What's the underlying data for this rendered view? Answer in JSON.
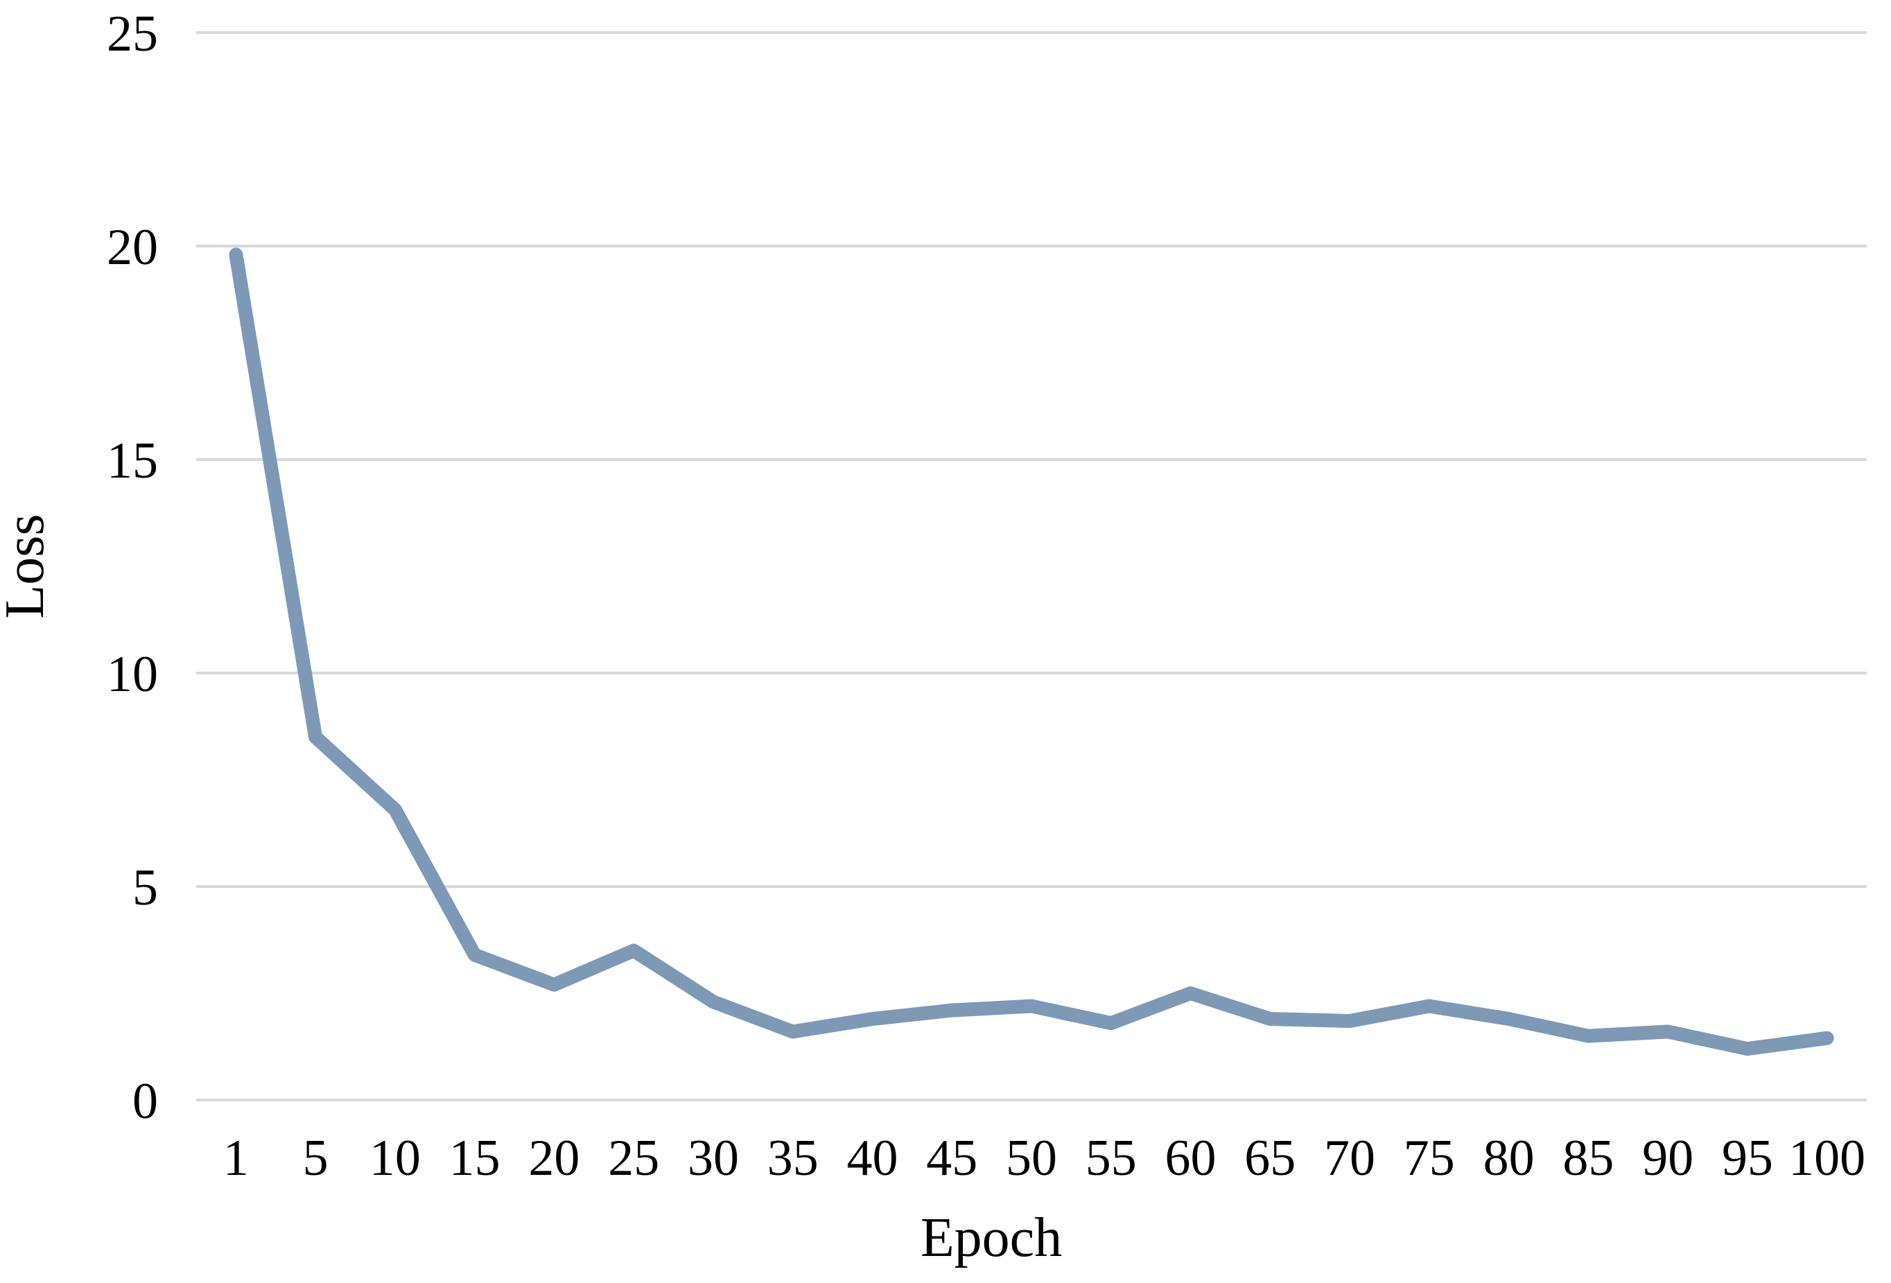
{
  "chart_data": {
    "type": "line",
    "title": "",
    "xlabel": "Epoch",
    "ylabel": "Loss",
    "categories": [
      "1",
      "5",
      "10",
      "15",
      "20",
      "25",
      "30",
      "35",
      "40",
      "45",
      "50",
      "55",
      "60",
      "65",
      "70",
      "75",
      "80",
      "85",
      "90",
      "95",
      "100"
    ],
    "series": [
      {
        "name": "Loss",
        "values": [
          19.8,
          8.5,
          6.8,
          3.4,
          2.7,
          3.5,
          2.3,
          1.6,
          1.9,
          2.1,
          2.2,
          1.8,
          2.5,
          1.9,
          1.85,
          2.2,
          1.9,
          1.5,
          1.6,
          1.2,
          1.45
        ]
      }
    ],
    "ylim": [
      0,
      25
    ],
    "y_ticks": [
      0,
      5,
      10,
      15,
      20,
      25
    ],
    "grid": "horizontal-only",
    "legend_position": "none",
    "markers": "none",
    "colors": {
      "line": "#7d99b6",
      "gridline": "#d9d9d9",
      "axis_line": "#d9d9d9",
      "text": "#000000",
      "background": "#ffffff"
    }
  }
}
